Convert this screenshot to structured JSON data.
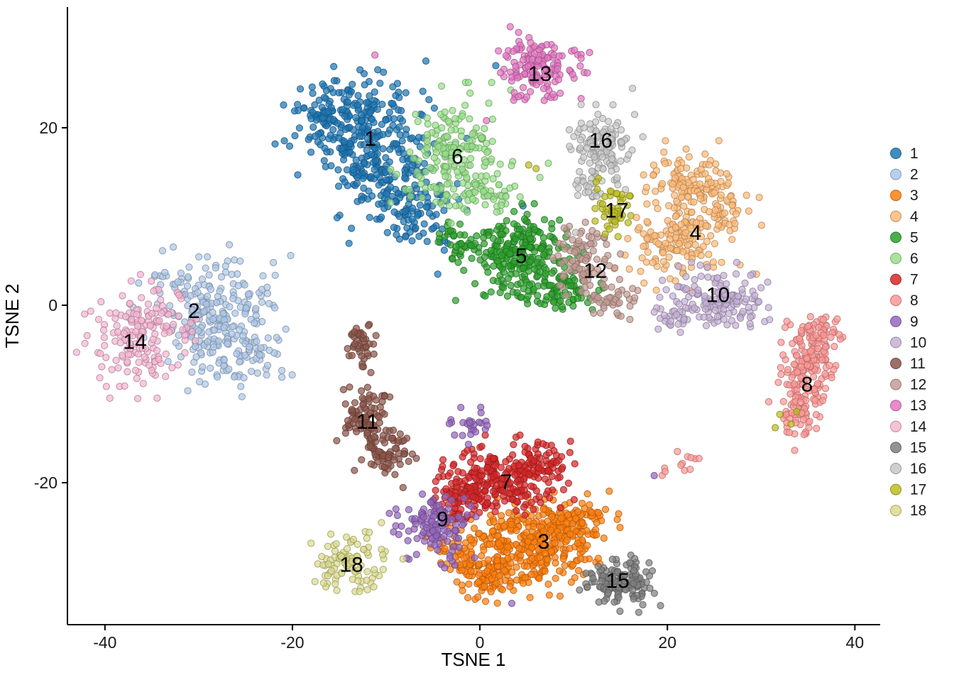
{
  "figure": {
    "background": "#FFFFFF"
  },
  "chart_data": {
    "type": "scatter",
    "title": "",
    "xlabel": "TSNE 1",
    "ylabel": "TSNE 2",
    "x_ticks": [
      -40,
      -20,
      0,
      20,
      40
    ],
    "y_ticks": [
      -20,
      0,
      20
    ],
    "x_range": [
      -44.0,
      42.7
    ],
    "y_range": [
      -36.0,
      33.6
    ],
    "grid": false,
    "legend_position": "right",
    "point_alpha": 0.72,
    "point_radius": 4.6,
    "seed": 1337,
    "clusters": [
      {
        "label": "1",
        "color": "#1F77B4",
        "label_pos": [
          -11.7,
          18.6
        ],
        "blobs": [
          [
            -13.5,
            20.5,
            3.2,
            2.6,
            260
          ],
          [
            -9.5,
            14.0,
            3.0,
            2.6,
            170
          ],
          [
            -6.5,
            9.5,
            1.8,
            1.5,
            50
          ]
        ],
        "extra_points": [
          [
            -3.8,
            6.2
          ],
          [
            4.6,
            11.2
          ],
          [
            1.7,
            27.0
          ],
          [
            -4.5,
            3.5
          ]
        ]
      },
      {
        "label": "2",
        "color": "#AEC7E8",
        "label_pos": [
          -30.5,
          -0.8
        ],
        "blobs": [
          [
            -28.5,
            -1.0,
            3.5,
            3.2,
            230
          ],
          [
            -26.5,
            -5.5,
            2.5,
            1.8,
            70
          ]
        ],
        "extra_points": [
          [
            -23.5,
            -5.6
          ]
        ]
      },
      {
        "label": "3",
        "color": "#FF7F0E",
        "label_pos": [
          6.8,
          -26.8
        ],
        "blobs": [
          [
            5.5,
            -27.0,
            3.5,
            2.2,
            320
          ],
          [
            10.5,
            -24.5,
            2.0,
            1.5,
            90
          ],
          [
            1.0,
            -30.5,
            2.2,
            1.5,
            90
          ],
          [
            -2.5,
            -27.5,
            1.3,
            1.2,
            40
          ]
        ],
        "extra_points": [
          [
            14.8,
            -23.5
          ]
        ]
      },
      {
        "label": "4",
        "color": "#FFBB78",
        "label_pos": [
          23.0,
          8.0
        ],
        "blobs": [
          [
            22.5,
            13.5,
            2.2,
            1.9,
            130
          ],
          [
            21.0,
            7.0,
            2.5,
            2.0,
            130
          ],
          [
            26.0,
            10.0,
            1.5,
            1.5,
            40
          ]
        ],
        "extra_points": [
          [
            17.5,
            2.5
          ],
          [
            29.5,
            3.5
          ],
          [
            22.0,
            17.6
          ]
        ]
      },
      {
        "label": "5",
        "color": "#2CA02C",
        "label_pos": [
          4.4,
          5.4
        ],
        "blobs": [
          [
            4.0,
            5.5,
            2.8,
            2.2,
            260
          ],
          [
            8.5,
            1.5,
            2.0,
            1.0,
            60
          ],
          [
            -2.5,
            7.5,
            1.2,
            1.0,
            30
          ]
        ],
        "extra_points": [
          [
            11.5,
            0.3
          ],
          [
            12.0,
            -0.5
          ]
        ]
      },
      {
        "label": "6",
        "color": "#98DF8A",
        "label_pos": [
          -2.4,
          16.6
        ],
        "blobs": [
          [
            -2.5,
            17.0,
            2.6,
            3.0,
            200
          ],
          [
            1.5,
            12.5,
            1.5,
            1.2,
            30
          ]
        ],
        "extra_points": [
          [
            6.4,
            14.4
          ],
          [
            3.2,
            13.2
          ],
          [
            7.3,
            16.0
          ]
        ]
      },
      {
        "label": "7",
        "color": "#D62728",
        "label_pos": [
          2.8,
          -20.1
        ],
        "blobs": [
          [
            2.5,
            -19.5,
            2.8,
            1.8,
            220
          ],
          [
            -2.0,
            -21.5,
            1.8,
            1.5,
            80
          ],
          [
            7.0,
            -17.5,
            1.3,
            1.2,
            40
          ]
        ],
        "extra_points": [
          [
            9.6,
            -16.6
          ],
          [
            0.2,
            -15.9
          ]
        ]
      },
      {
        "label": "8",
        "color": "#FF9896",
        "label_pos": [
          34.9,
          -9.1
        ],
        "blobs": [
          [
            35.2,
            -6.5,
            1.5,
            2.2,
            120
          ],
          [
            34.2,
            -11.5,
            1.3,
            1.8,
            80
          ],
          [
            36.5,
            -3.0,
            1.0,
            1.2,
            40
          ],
          [
            22.2,
            -17.6,
            0.6,
            0.45,
            9
          ],
          [
            19.9,
            -18.8,
            0.3,
            0.3,
            3
          ]
        ],
        "extra_points": []
      },
      {
        "label": "9",
        "color": "#9467BD",
        "label_pos": [
          -4.0,
          -24.3
        ],
        "blobs": [
          [
            -4.8,
            -25.0,
            1.8,
            2.0,
            120
          ],
          [
            -1.5,
            -13.5,
            1.3,
            0.9,
            25
          ]
        ],
        "extra_points": [
          [
            3.4,
            -33.6
          ],
          [
            18.6,
            -19.2
          ],
          [
            -7.8,
            -28.5
          ]
        ]
      },
      {
        "label": "10",
        "color": "#C5B0D5",
        "label_pos": [
          25.4,
          1.0
        ],
        "blobs": [
          [
            25.3,
            0.5,
            2.6,
            1.6,
            150
          ],
          [
            20.5,
            -1.5,
            1.0,
            0.8,
            20
          ]
        ],
        "extra_points": [
          [
            30.7,
            2.6
          ]
        ]
      },
      {
        "label": "11",
        "color": "#8C564B",
        "label_pos": [
          -12.0,
          -13.3
        ],
        "blobs": [
          [
            -12.8,
            -4.0,
            0.7,
            1.4,
            45
          ],
          [
            -12.3,
            -12.5,
            1.1,
            1.6,
            80
          ],
          [
            -10.0,
            -16.5,
            1.5,
            1.5,
            70
          ]
        ],
        "extra_points": [
          [
            -7.6,
            -17.6
          ]
        ]
      },
      {
        "label": "12",
        "color": "#C49C94",
        "label_pos": [
          12.3,
          3.7
        ],
        "blobs": [
          [
            11.3,
            5.5,
            1.5,
            2.0,
            90
          ],
          [
            13.8,
            0.8,
            1.5,
            1.0,
            40
          ]
        ],
        "extra_points": [
          [
            16.0,
            -1.6
          ],
          [
            9.0,
            8.7
          ]
        ]
      },
      {
        "label": "13",
        "color": "#E377C2",
        "label_pos": [
          6.4,
          25.9
        ],
        "blobs": [
          [
            6.3,
            26.8,
            2.0,
            1.7,
            150
          ]
        ],
        "extra_points": [
          [
            0.7,
            20.8
          ],
          [
            -11.2,
            28.2
          ],
          [
            10.8,
            23.3
          ]
        ]
      },
      {
        "label": "14",
        "color": "#F7B6D2",
        "label_pos": [
          -36.8,
          -4.3
        ],
        "blobs": [
          [
            -36.0,
            -3.5,
            2.6,
            2.6,
            170
          ]
        ],
        "extra_points": [
          [
            -34.8,
            1.6
          ]
        ]
      },
      {
        "label": "15",
        "color": "#7F7F7F",
        "label_pos": [
          14.7,
          -31.2
        ],
        "blobs": [
          [
            14.8,
            -31.3,
            1.7,
            1.3,
            130
          ]
        ],
        "extra_points": []
      },
      {
        "label": "16",
        "color": "#C7C7C7",
        "label_pos": [
          12.9,
          18.4
        ],
        "blobs": [
          [
            12.8,
            18.5,
            1.7,
            2.2,
            120
          ],
          [
            11.5,
            13.5,
            1.2,
            1.0,
            25
          ]
        ],
        "extra_points": [
          [
            10.2,
            8.2
          ],
          [
            16.5,
            21.5
          ]
        ]
      },
      {
        "label": "17",
        "color": "#BCBD22",
        "label_pos": [
          14.6,
          10.5
        ],
        "blobs": [
          [
            14.2,
            10.8,
            1.0,
            1.3,
            45
          ]
        ],
        "extra_points": [
          [
            5.2,
            15.8
          ],
          [
            6.0,
            15.4
          ],
          [
            12.4,
            13.9
          ],
          [
            32.0,
            -12.3
          ],
          [
            33.2,
            -13.4
          ],
          [
            31.5,
            -13.8
          ],
          [
            33.8,
            -12.0
          ]
        ]
      },
      {
        "label": "18",
        "color": "#DBDB8D",
        "label_pos": [
          -13.7,
          -29.4
        ],
        "blobs": [
          [
            -13.8,
            -29.3,
            1.7,
            1.4,
            100
          ]
        ],
        "extra_points": [
          [
            -11.8,
            -25.6
          ],
          [
            -10.5,
            -24.5
          ],
          [
            -8.2,
            -28.6
          ],
          [
            -15.9,
            -25.8
          ]
        ]
      }
    ],
    "legend": {
      "title": "",
      "items": [
        "1",
        "2",
        "3",
        "4",
        "5",
        "6",
        "7",
        "8",
        "9",
        "10",
        "11",
        "12",
        "13",
        "14",
        "15",
        "16",
        "17",
        "18"
      ]
    }
  }
}
